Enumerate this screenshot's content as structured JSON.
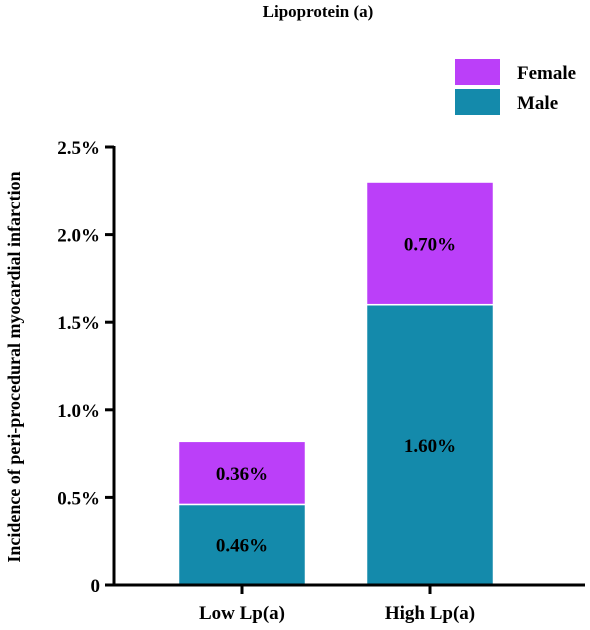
{
  "chart_data": {
    "type": "bar",
    "stacked": true,
    "title": "Lipoprotein (a)",
    "xlabel": "",
    "ylabel": "Incidence of peri-procedural myocardial infarction",
    "categories": [
      "Low Lp(a)",
      "High Lp(a)"
    ],
    "ylim": [
      0,
      2.5
    ],
    "yticks": [
      0,
      0.5,
      1.0,
      1.5,
      2.0,
      2.5
    ],
    "ytick_labels": [
      "0",
      "0.5%",
      "1.0%",
      "1.5%",
      "2.0%",
      "2.5%"
    ],
    "series": [
      {
        "name": "Male",
        "values": [
          0.46,
          1.6
        ],
        "labels": [
          "0.46%",
          "1.60%"
        ],
        "color": "#148aab"
      },
      {
        "name": "Female",
        "values": [
          0.36,
          0.7
        ],
        "labels": [
          "0.36%",
          "0.70%"
        ],
        "color": "#bb3ff9"
      }
    ],
    "legend": {
      "position": "top-right",
      "order": [
        "Female",
        "Male"
      ]
    },
    "grid": false
  }
}
